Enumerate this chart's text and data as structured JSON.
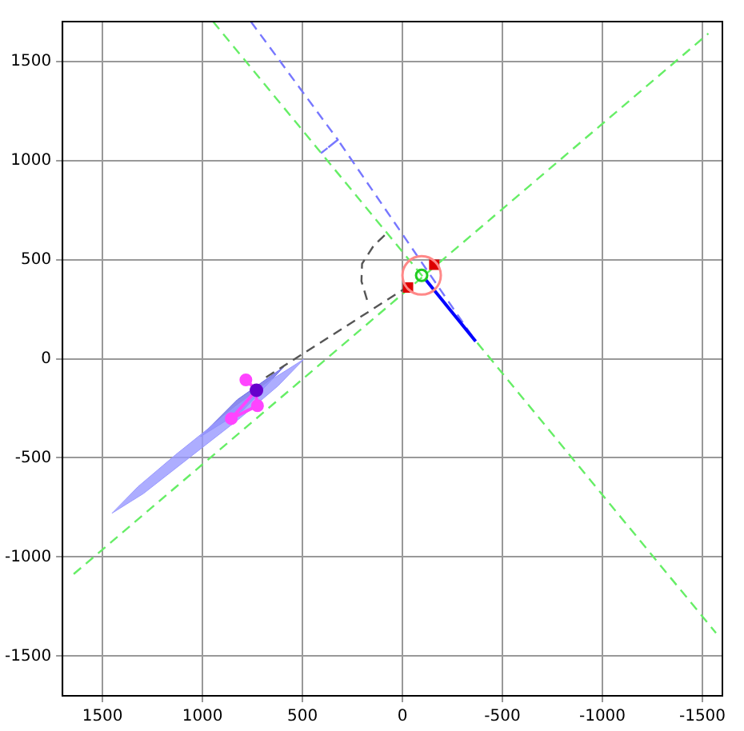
{
  "chart_data": {
    "type": "line",
    "xlim": [
      1700,
      -1600
    ],
    "ylim": [
      -1700,
      1700
    ],
    "xticks": [
      1500,
      1000,
      500,
      0,
      -500,
      -1000,
      -1500
    ],
    "yticks": [
      -1500,
      -1000,
      -500,
      0,
      500,
      1000,
      1500
    ],
    "grid": true,
    "legend": false,
    "series": [
      {
        "type": "area",
        "color": "#9999ff",
        "x": [
          1452,
          1295,
          1105,
          810,
          622,
          492,
          649,
          846,
          1134,
          1322,
          1452
        ],
        "values": [
          -779,
          -680,
          -530,
          -298,
          -137,
          -2,
          -102,
          -251,
          -484,
          -645,
          -779
        ]
      },
      {
        "type": "area",
        "color": "#6e6ee8",
        "x": [
          1010,
          795,
          593,
          826,
          1010
        ],
        "values": [
          -393,
          -258,
          -41,
          -207,
          -393
        ]
      },
      {
        "color": "#66ee66",
        "line_style": "dashed",
        "marker": "none",
        "x": [
          1644,
          -1530
        ],
        "values": [
          -1086,
          1640
        ]
      },
      {
        "type": "line",
        "color": "#66ee66",
        "line_style": "dashed",
        "marker": "none",
        "x": [
          947,
          -1568
        ],
        "values": [
          1700,
          -1383
        ]
      },
      {
        "type": "line",
        "color": "#7777ff",
        "line_style": "dashed",
        "marker": "none",
        "x": [
          758,
          323,
          404,
          323,
          -366
        ],
        "values": [
          1700,
          1104,
          1039,
          1104,
          88
        ]
      },
      {
        "type": "line",
        "color": "#0000ff",
        "line_style": "solid",
        "marker": "none",
        "x": [
          -114,
          -366
        ],
        "values": [
          401,
          88
        ]
      },
      {
        "type": "line",
        "color": "#555555",
        "line_style": "dashed",
        "marker": "none",
        "x": [
          682,
          -25
        ],
        "values": [
          -94,
          362
        ]
      },
      {
        "type": "line",
        "color": "#555555",
        "line_style": "dashed",
        "marker": "none",
        "x": [
          89,
          144,
          202,
          205,
          177
        ],
        "values": [
          623,
          570,
          479,
          391,
          297
        ]
      },
      {
        "type": "line",
        "color": "#ff44ff",
        "line_style": "solid",
        "marker": "circle",
        "x": [
          783,
          730,
          856,
          725,
          730
        ],
        "values": [
          -107,
          -159,
          -302,
          -237,
          -159
        ]
      },
      {
        "type": "scatter",
        "color": "#6600cc",
        "marker": "circle",
        "x": [
          730
        ],
        "values": [
          -159
        ]
      },
      {
        "type": "scatter",
        "color": "#ff8888",
        "marker": "circle",
        "x": [
          -96
        ],
        "values": [
          420
        ]
      },
      {
        "type": "scatter",
        "color": "#22cc22",
        "marker": "circle",
        "x": [
          -96
        ],
        "values": [
          420
        ]
      },
      {
        "type": "scatter",
        "color": "#dd0000",
        "marker": "square",
        "x": [
          -28,
          -159
        ],
        "values": [
          359,
          474
        ]
      }
    ]
  }
}
